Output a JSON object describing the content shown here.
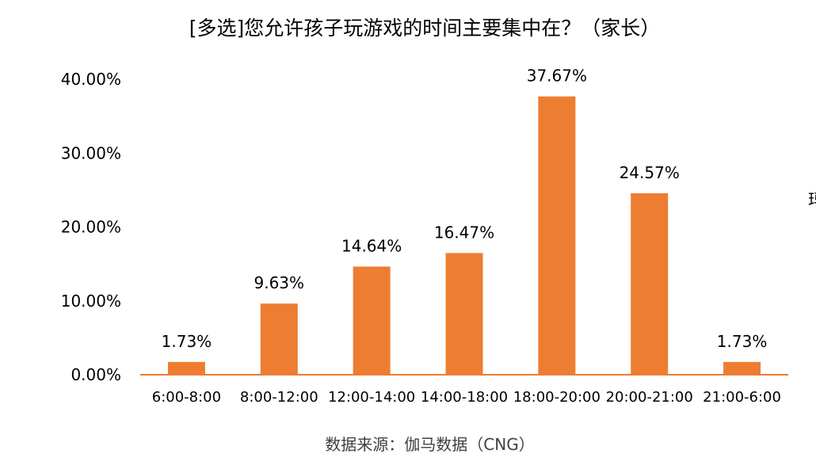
{
  "title": "[多选]您允许孩子玩游戏的时间主要集中在？（家长）",
  "source": "数据来源：伽马数据（CNG）",
  "edge_text": "玛",
  "colors": {
    "bar": "#ED7D31",
    "axis": "#ED7D31"
  },
  "chart_data": {
    "type": "bar",
    "title": "[多选]您允许孩子玩游戏的时间主要集中在？（家长）",
    "xlabel": "",
    "ylabel": "",
    "categories": [
      "6:00-8:00",
      "8:00-12:00",
      "12:00-14:00",
      "14:00-18:00",
      "18:00-20:00",
      "20:00-21:00",
      "21:00-6:00"
    ],
    "values": [
      1.73,
      9.63,
      14.64,
      16.47,
      37.67,
      24.57,
      1.73
    ],
    "data_labels": [
      "1.73%",
      "9.63%",
      "14.64%",
      "16.47%",
      "37.67%",
      "24.57%",
      "1.73%"
    ],
    "ylim": [
      0,
      40
    ],
    "yticks": [
      "0.00%",
      "10.00%",
      "20.00%",
      "30.00%",
      "40.00%"
    ],
    "ytick_values": [
      0,
      10,
      20,
      30,
      40
    ],
    "grid": false,
    "legend": "none"
  }
}
